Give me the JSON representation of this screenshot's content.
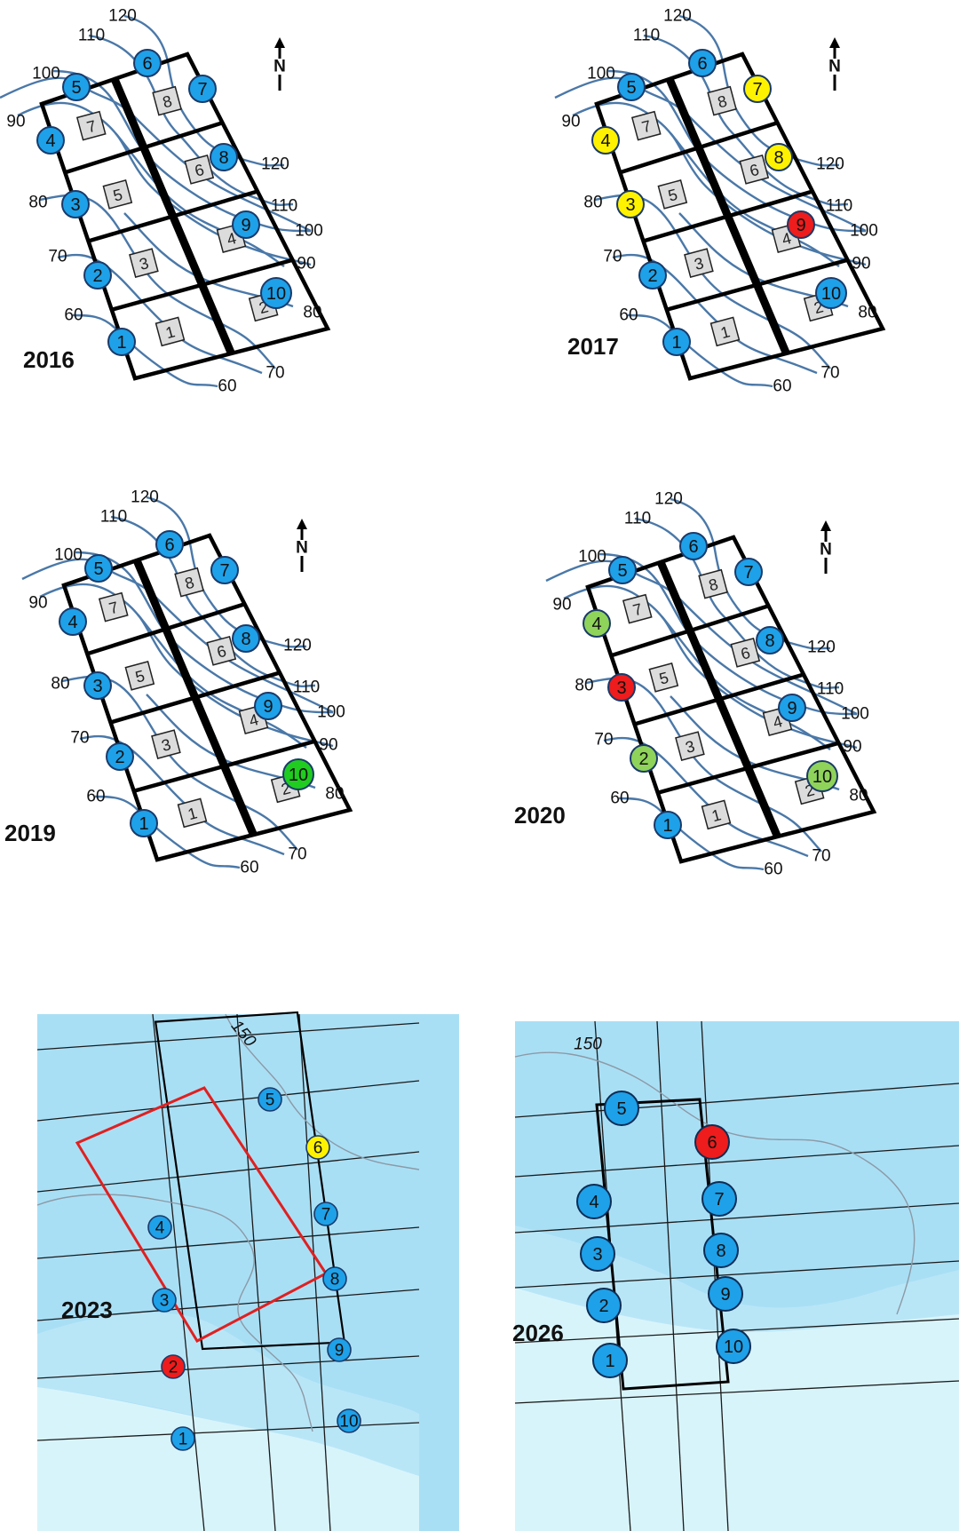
{
  "panels": [
    {
      "year": "2016",
      "north": "N",
      "contour_labels": [
        "120",
        "110",
        "100",
        "90",
        "80",
        "70",
        "60",
        "60",
        "70",
        "80",
        "100",
        "110",
        "120",
        "90"
      ],
      "plots": [
        "7",
        "8",
        "5",
        "6",
        "3",
        "4",
        "1",
        "2"
      ],
      "wells": [
        {
          "label": "1",
          "status": "blue"
        },
        {
          "label": "2",
          "status": "blue"
        },
        {
          "label": "3",
          "status": "blue"
        },
        {
          "label": "4",
          "status": "blue"
        },
        {
          "label": "5",
          "status": "blue"
        },
        {
          "label": "6",
          "status": "blue"
        },
        {
          "label": "7",
          "status": "blue"
        },
        {
          "label": "8",
          "status": "blue"
        },
        {
          "label": "9",
          "status": "blue"
        },
        {
          "label": "10",
          "status": "blue"
        }
      ]
    },
    {
      "year": "2017",
      "north": "N",
      "contour_labels": [
        "120",
        "110",
        "100",
        "90",
        "80",
        "70",
        "60",
        "60",
        "70",
        "80",
        "100",
        "110",
        "120",
        "90"
      ],
      "plots": [
        "7",
        "8",
        "5",
        "6",
        "3",
        "4",
        "1",
        "2"
      ],
      "wells": [
        {
          "label": "1",
          "status": "blue"
        },
        {
          "label": "2",
          "status": "blue"
        },
        {
          "label": "3",
          "status": "yellow"
        },
        {
          "label": "4",
          "status": "yellow"
        },
        {
          "label": "5",
          "status": "blue"
        },
        {
          "label": "6",
          "status": "blue"
        },
        {
          "label": "7",
          "status": "yellow"
        },
        {
          "label": "8",
          "status": "yellow"
        },
        {
          "label": "9",
          "status": "red"
        },
        {
          "label": "10",
          "status": "blue"
        }
      ]
    },
    {
      "year": "2019",
      "north": "N",
      "contour_labels": [
        "120",
        "110",
        "100",
        "90",
        "80",
        "70",
        "60",
        "60",
        "70",
        "80",
        "100",
        "110",
        "120",
        "90"
      ],
      "plots": [
        "7",
        "8",
        "5",
        "6",
        "3",
        "4",
        "1",
        "2"
      ],
      "wells": [
        {
          "label": "1",
          "status": "blue"
        },
        {
          "label": "2",
          "status": "blue"
        },
        {
          "label": "3",
          "status": "blue"
        },
        {
          "label": "4",
          "status": "blue"
        },
        {
          "label": "5",
          "status": "blue"
        },
        {
          "label": "6",
          "status": "blue"
        },
        {
          "label": "7",
          "status": "blue"
        },
        {
          "label": "8",
          "status": "blue"
        },
        {
          "label": "9",
          "status": "blue"
        },
        {
          "label": "10",
          "status": "green"
        }
      ]
    },
    {
      "year": "2020",
      "north": "N",
      "contour_labels": [
        "120",
        "110",
        "100",
        "90",
        "80",
        "70",
        "60",
        "60",
        "70",
        "80",
        "100",
        "110",
        "120",
        "90"
      ],
      "plots": [
        "7",
        "8",
        "5",
        "6",
        "3",
        "4",
        "1",
        "2"
      ],
      "wells": [
        {
          "label": "1",
          "status": "blue"
        },
        {
          "label": "2",
          "status": "lightgreen"
        },
        {
          "label": "3",
          "status": "red"
        },
        {
          "label": "4",
          "status": "lightgreen"
        },
        {
          "label": "5",
          "status": "blue"
        },
        {
          "label": "6",
          "status": "blue"
        },
        {
          "label": "7",
          "status": "blue"
        },
        {
          "label": "8",
          "status": "blue"
        },
        {
          "label": "9",
          "status": "blue"
        },
        {
          "label": "10",
          "status": "lightgreen"
        }
      ]
    }
  ],
  "map_2023": {
    "year": "2023",
    "contour_label": "150",
    "wells": [
      {
        "label": "1",
        "status": "blue"
      },
      {
        "label": "2",
        "status": "red"
      },
      {
        "label": "3",
        "status": "blue"
      },
      {
        "label": "4",
        "status": "blue"
      },
      {
        "label": "5",
        "status": "blue"
      },
      {
        "label": "6",
        "status": "yellow"
      },
      {
        "label": "7",
        "status": "blue"
      },
      {
        "label": "8",
        "status": "blue"
      },
      {
        "label": "9",
        "status": "blue"
      },
      {
        "label": "10",
        "status": "blue"
      }
    ]
  },
  "map_2026": {
    "year": "2026",
    "contour_label": "150",
    "wells": [
      {
        "label": "1",
        "status": "blue"
      },
      {
        "label": "2",
        "status": "blue"
      },
      {
        "label": "3",
        "status": "blue"
      },
      {
        "label": "4",
        "status": "blue"
      },
      {
        "label": "5",
        "status": "blue"
      },
      {
        "label": "6",
        "status": "red"
      },
      {
        "label": "7",
        "status": "blue"
      },
      {
        "label": "8",
        "status": "blue"
      },
      {
        "label": "9",
        "status": "blue"
      },
      {
        "label": "10",
        "status": "blue"
      }
    ]
  },
  "colors": {
    "blue": "#1ea1e8",
    "yellow": "#fff200",
    "red": "#ee1c1c",
    "green": "#1fcc1f",
    "lightgreen": "#8fd35a",
    "contour": "#4a78a8",
    "plot_fill": "#dcdcdc",
    "water_dark": "#a9dff5",
    "water_light": "#d8f4fb",
    "boundary_red": "#e02020"
  }
}
